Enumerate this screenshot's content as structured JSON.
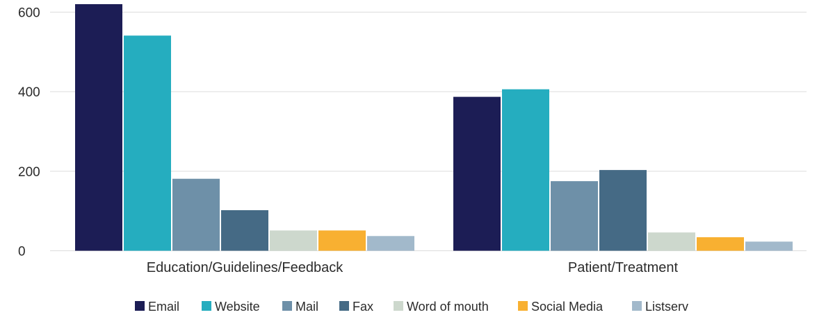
{
  "chart_data": {
    "type": "bar",
    "categories": [
      "Education/Guidelines/Feedback",
      "Patient/Treatment"
    ],
    "series": [
      {
        "name": "Email",
        "color": "#1c1d55",
        "values": [
          620,
          387
        ]
      },
      {
        "name": "Website",
        "color": "#25adbf",
        "values": [
          541,
          406
        ]
      },
      {
        "name": "Mail",
        "color": "#6e90a8",
        "values": [
          181,
          175
        ]
      },
      {
        "name": "Fax",
        "color": "#456a85",
        "values": [
          102,
          203
        ]
      },
      {
        "name": "Word of mouth",
        "color": "#cdd8cd",
        "values": [
          51,
          46
        ]
      },
      {
        "name": "Social Media",
        "color": "#f8b031",
        "values": [
          51,
          34
        ]
      },
      {
        "name": "Listserv",
        "color": "#a2b9cb",
        "values": [
          37,
          23
        ]
      }
    ],
    "yticks": [
      0,
      200,
      400,
      600
    ],
    "ylim": [
      0,
      620
    ],
    "grid": true,
    "legend_position": "bottom-center",
    "title": "",
    "xlabel": "",
    "ylabel": ""
  }
}
